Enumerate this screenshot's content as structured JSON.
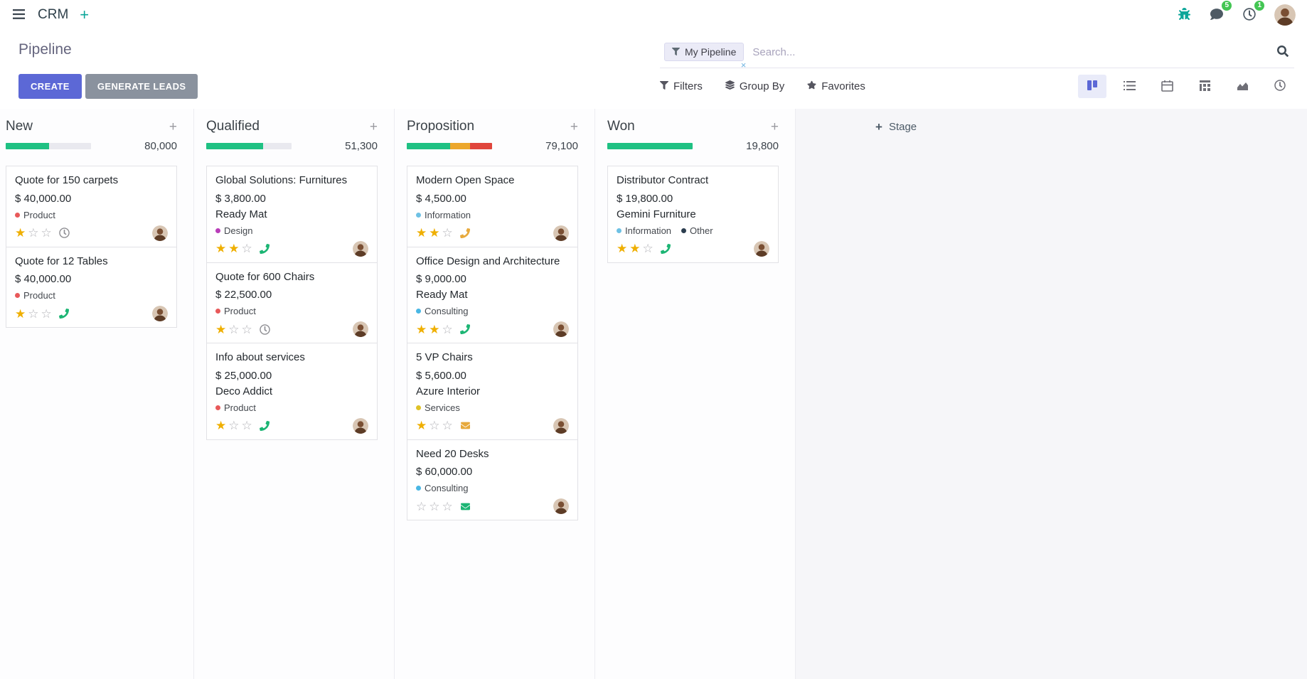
{
  "theme": {
    "primary": "#5c68d6",
    "secondary": "#8a929e",
    "badge": "#43c553",
    "star": "#efaf00",
    "teal": "#0ca699"
  },
  "navbar": {
    "app_name": "CRM",
    "messages_badge": "5",
    "activities_badge": "1"
  },
  "control_panel": {
    "title": "Pipeline",
    "search": {
      "facet_label": "My Pipeline",
      "facet_remove_label": "×",
      "placeholder": "Search..."
    },
    "create_label": "CREATE",
    "generate_leads_label": "GENERATE LEADS",
    "filters_label": "Filters",
    "group_by_label": "Group By",
    "favorites_label": "Favorites"
  },
  "kanban": {
    "add_stage_label": "Stage",
    "columns": [
      {
        "name": "New",
        "total": "80,000",
        "progress": [
          {
            "color": "#1fc183",
            "pct": 51
          }
        ],
        "cards": [
          {
            "title": "Quote for 150 carpets",
            "amount": "$ 40,000.00",
            "tags": [
              {
                "label": "Product",
                "color": "#e8595a"
              }
            ],
            "stars": 1,
            "activity_icon": "clock-icon"
          },
          {
            "title": "Quote for 12 Tables",
            "amount": "$ 40,000.00",
            "tags": [
              {
                "label": "Product",
                "color": "#e8595a"
              }
            ],
            "stars": 1,
            "activity_icon": "phone-icon"
          }
        ]
      },
      {
        "name": "Qualified",
        "total": "51,300",
        "progress": [
          {
            "color": "#1fc183",
            "pct": 67
          }
        ],
        "cards": [
          {
            "title": "Global Solutions: Furnitures",
            "amount": "$ 3,800.00",
            "partner": "Ready Mat",
            "tags": [
              {
                "label": "Design",
                "color": "#b93db9"
              }
            ],
            "stars": 2,
            "activity_icon": "phone-icon"
          },
          {
            "title": "Quote for 600 Chairs",
            "amount": "$ 22,500.00",
            "tags": [
              {
                "label": "Product",
                "color": "#e8595a"
              }
            ],
            "stars": 1,
            "activity_icon": "clock-icon"
          },
          {
            "title": "Info about services",
            "amount": "$ 25,000.00",
            "partner": "Deco Addict",
            "tags": [
              {
                "label": "Product",
                "color": "#e8595a"
              }
            ],
            "stars": 1,
            "activity_icon": "phone-icon"
          }
        ]
      },
      {
        "name": "Proposition",
        "total": "79,100",
        "progress": [
          {
            "color": "#1fc183",
            "pct": 51
          },
          {
            "color": "#eca72c",
            "pct": 23
          },
          {
            "color": "#e0453c",
            "pct": 26
          }
        ],
        "cards": [
          {
            "title": "Modern Open Space",
            "amount": "$ 4,500.00",
            "tags": [
              {
                "label": "Information",
                "color": "#6ec1e4"
              }
            ],
            "stars": 2,
            "activity_icon": "phone-icon"
          },
          {
            "title": "Office Design and Architecture",
            "amount": "$ 9,000.00",
            "partner": "Ready Mat",
            "tags": [
              {
                "label": "Consulting",
                "color": "#49b7e4"
              }
            ],
            "stars": 2,
            "activity_icon": "phone-icon"
          },
          {
            "title": "5 VP Chairs",
            "amount": "$ 5,600.00",
            "partner": "Azure Interior",
            "tags": [
              {
                "label": "Services",
                "color": "#dfc228"
              }
            ],
            "stars": 1,
            "activity_icon": "envelope-icon"
          },
          {
            "title": "Need 20 Desks",
            "amount": "$ 60,000.00",
            "tags": [
              {
                "label": "Consulting",
                "color": "#49b7e4"
              }
            ],
            "stars": 0,
            "activity_icon": "envelope-icon"
          }
        ]
      },
      {
        "name": "Won",
        "total": "19,800",
        "progress": [
          {
            "color": "#1fc183",
            "pct": 100
          }
        ],
        "cards": [
          {
            "title": "Distributor Contract",
            "amount": "$ 19,800.00",
            "partner": "Gemini Furniture",
            "tags": [
              {
                "label": "Information",
                "color": "#6ec1e4"
              },
              {
                "label": "Other",
                "color": "#2b3d4f"
              }
            ],
            "stars": 2,
            "activity_icon": "phone-icon"
          }
        ]
      }
    ]
  }
}
